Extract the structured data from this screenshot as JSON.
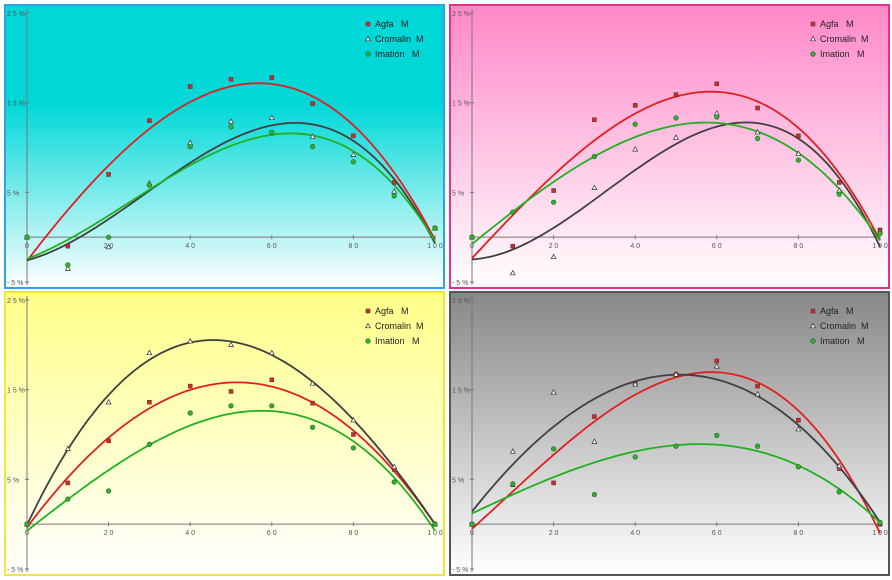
{
  "chart_data": [
    {
      "type": "scatter",
      "title": "",
      "xlabel": "",
      "ylabel": "",
      "xlim": [
        0,
        100
      ],
      "ylim": [
        -5,
        25
      ],
      "xticks": [
        "0",
        "2 0",
        "4 0",
        "6 0",
        "8 0",
        "1 0 0"
      ],
      "yticks": [
        "- 5 %",
        "5 %",
        "1 5 %",
        "2 5 %"
      ],
      "legend_position": "top-right",
      "background": [
        "#00d8d8",
        "#ffffff"
      ],
      "x": [
        0,
        10,
        20,
        30,
        40,
        50,
        60,
        70,
        80,
        90,
        100
      ],
      "series": [
        {
          "name": "Agfa   M",
          "color": "#e02020",
          "marker": "square",
          "values": [
            0,
            -1,
            7,
            13,
            16.8,
            17.6,
            17.8,
            14.9,
            11.3,
            6.1,
            1
          ]
        },
        {
          "name": "Cromalin  M",
          "color": "#404040",
          "marker": "triangle",
          "values": [
            0,
            -3.5,
            -1.1,
            6,
            10.5,
            12.9,
            13.3,
            11.2,
            9.2,
            5.1,
            1
          ]
        },
        {
          "name": "Imation   M",
          "color": "#20b020",
          "marker": "circle",
          "values": [
            0,
            -3.1,
            0,
            5.8,
            10.1,
            12.3,
            11.7,
            10.1,
            8.4,
            4.6,
            1
          ]
        }
      ]
    },
    {
      "type": "scatter",
      "title": "",
      "xlabel": "",
      "ylabel": "",
      "xlim": [
        0,
        100
      ],
      "ylim": [
        -5,
        25
      ],
      "xticks": [
        "0",
        "2 0",
        "4 0",
        "6 0",
        "8 0",
        "1 0 0"
      ],
      "yticks": [
        "- 5 %",
        "5 %",
        "1 5 %",
        "2 5 %"
      ],
      "legend_position": "top-right",
      "background": [
        "#ff88c8",
        "#ffffff"
      ],
      "x": [
        0,
        10,
        20,
        30,
        40,
        50,
        60,
        70,
        80,
        90,
        100
      ],
      "series": [
        {
          "name": "Agfa   M",
          "color": "#e02020",
          "marker": "square",
          "values": [
            0,
            -1,
            5.2,
            13.1,
            14.7,
            15.9,
            17.1,
            14.4,
            11.3,
            6.1,
            0.8
          ]
        },
        {
          "name": "Cromalin  M",
          "color": "#404040",
          "marker": "triangle",
          "values": [
            0,
            -4,
            -2.2,
            5.5,
            9.8,
            11.1,
            13.8,
            11.7,
            9.3,
            5.2,
            0.6
          ]
        },
        {
          "name": "Imation   M",
          "color": "#20b020",
          "marker": "circle",
          "values": [
            0,
            2.8,
            3.9,
            9,
            12.6,
            13.3,
            13.4,
            11,
            8.6,
            4.8,
            0.4
          ]
        }
      ]
    },
    {
      "type": "scatter",
      "title": "",
      "xlabel": "",
      "ylabel": "",
      "xlim": [
        0,
        100
      ],
      "ylim": [
        -5,
        25
      ],
      "xticks": [
        "0",
        "2 0",
        "4 0",
        "6 0",
        "8 0",
        "1 0 0"
      ],
      "yticks": [
        "- 5 %",
        "5 %",
        "1 5 %",
        "2 5 %"
      ],
      "legend_position": "top-right",
      "background": [
        "#ffff88",
        "#ffffff"
      ],
      "x": [
        0,
        10,
        20,
        30,
        40,
        50,
        60,
        70,
        80,
        90,
        100
      ],
      "series": [
        {
          "name": "Agfa   M",
          "color": "#e02020",
          "marker": "square",
          "values": [
            0,
            4.6,
            9.3,
            13.6,
            15.4,
            14.8,
            16.1,
            13.5,
            10,
            6.1,
            0
          ]
        },
        {
          "name": "Cromalin  M",
          "color": "#404040",
          "marker": "triangle",
          "values": [
            0,
            8.4,
            13.6,
            19.1,
            20.4,
            20,
            19.1,
            15.7,
            11.6,
            6.4,
            0
          ]
        },
        {
          "name": "Imation   M",
          "color": "#20b020",
          "marker": "circle",
          "values": [
            0,
            2.8,
            3.7,
            8.9,
            12.4,
            13.2,
            13.2,
            10.8,
            8.5,
            4.7,
            0
          ]
        }
      ]
    },
    {
      "type": "scatter",
      "title": "",
      "xlabel": "",
      "ylabel": "",
      "xlim": [
        0,
        100
      ],
      "ylim": [
        -5,
        25
      ],
      "xticks": [
        "0",
        "2 0",
        "4 0",
        "6 0",
        "8 0",
        "1 0 0"
      ],
      "yticks": [
        "- 5 %",
        "5 %",
        "1 5 %",
        "2 5 %"
      ],
      "legend_position": "top-right",
      "background": [
        "#888888",
        "#ffffff"
      ],
      "x": [
        0,
        10,
        20,
        30,
        40,
        50,
        60,
        70,
        80,
        90,
        100
      ],
      "series": [
        {
          "name": "Agfa   M",
          "color": "#e02020",
          "marker": "square",
          "values": [
            0,
            4.4,
            4.6,
            12,
            15.6,
            16.7,
            18.2,
            15.4,
            11.6,
            6.2,
            0
          ]
        },
        {
          "name": "Cromalin  M",
          "color": "#404040",
          "marker": "triangle",
          "values": [
            0,
            8.1,
            14.7,
            9.2,
            15.6,
            16.7,
            17.6,
            14.5,
            10.6,
            6.5,
            0.1
          ]
        },
        {
          "name": "Imation   M",
          "color": "#20b020",
          "marker": "circle",
          "values": [
            0,
            4.5,
            8.4,
            3.3,
            7.5,
            8.7,
            9.9,
            8.7,
            6.4,
            3.6,
            0.2
          ]
        }
      ]
    }
  ]
}
